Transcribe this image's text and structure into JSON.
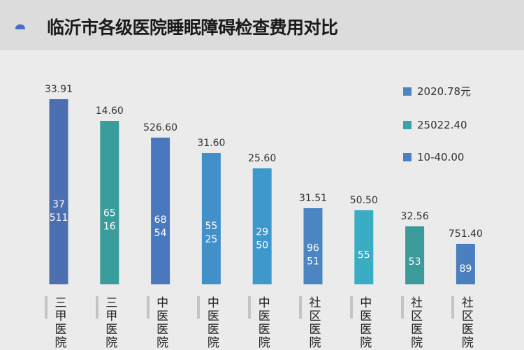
{
  "header": {
    "title": "临沂市各级医院睡眠障碍检查费用对比",
    "icon": "chart-icon"
  },
  "chart_data": {
    "type": "bar",
    "title": "临沂市各级医院睡眠障碍检查费用对比",
    "categories": [
      "三甲医院",
      "三甲医院",
      "中医医院",
      "中医医院",
      "中医医院",
      "社区医院",
      "中医医院",
      "社区医院",
      "社区医院"
    ],
    "values": [
      265,
      234,
      210,
      188,
      166,
      109,
      106,
      83,
      58
    ],
    "top_labels": [
      "33.91",
      "14.60",
      "526.60",
      "31.60",
      "25.60",
      "31.51",
      "50.50",
      "32.56",
      "751.40"
    ],
    "inner_labels": [
      [
        "37",
        "511"
      ],
      [
        "65",
        "16"
      ],
      [
        "68",
        "54"
      ],
      [
        "55",
        "25"
      ],
      [
        "29",
        "50"
      ],
      [
        "96",
        "51"
      ],
      [
        "55"
      ],
      [
        "53"
      ],
      [
        "89"
      ]
    ],
    "colors": [
      "#4b6fb0",
      "#3a9d9c",
      "#4a78be",
      "#4190c9",
      "#3d98cc",
      "#4b86c2",
      "#3aadc4",
      "#3b9b9a",
      "#4a80c0"
    ],
    "legend": [
      {
        "label": "2020.78元",
        "color": "#4a86c0"
      },
      {
        "label": "25022.40",
        "color": "#3aa4a8"
      },
      {
        "label": "10-40.00",
        "color": "#4a7fc0"
      }
    ],
    "legend_position": "top-right",
    "grid": false
  }
}
